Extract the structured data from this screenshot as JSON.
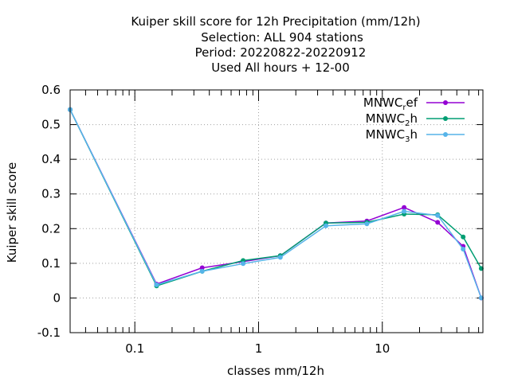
{
  "chart_data": {
    "type": "line",
    "title_lines": [
      "Kuiper skill score  for 12h Precipitation (mm/12h)",
      "Selection: ALL    904 stations",
      "Period: 20220822-20220912",
      "Used  All hours  + 12-00"
    ],
    "xlabel": "classes mm/12h",
    "ylabel": "Kuiper skill score",
    "x_scale": "log",
    "xlim": [
      0.03,
      65
    ],
    "ylim": [
      -0.1,
      0.6
    ],
    "x_ticks": [
      {
        "value": 0.1,
        "label": "0.1"
      },
      {
        "value": 1,
        "label": "1"
      },
      {
        "value": 10,
        "label": "10"
      }
    ],
    "y_ticks": [
      {
        "value": -0.1,
        "label": "-0.1"
      },
      {
        "value": 0,
        "label": "0"
      },
      {
        "value": 0.1,
        "label": "0.1"
      },
      {
        "value": 0.2,
        "label": "0.2"
      },
      {
        "value": 0.3,
        "label": "0.3"
      },
      {
        "value": 0.4,
        "label": "0.4"
      },
      {
        "value": 0.5,
        "label": "0.5"
      },
      {
        "value": 0.6,
        "label": "0.6"
      }
    ],
    "grid": true,
    "legend_position": "top-right",
    "x": [
      0.03,
      0.15,
      0.35,
      0.75,
      1.5,
      3.5,
      7.5,
      15,
      28,
      45,
      63
    ],
    "series": [
      {
        "name_main": "MNWC",
        "name_sub": "r",
        "name_rest": "ef",
        "color": "#9400d3",
        "values": [
          0.543,
          0.04,
          0.087,
          0.105,
          0.122,
          0.216,
          0.222,
          0.261,
          0.218,
          0.149,
          0.0
        ]
      },
      {
        "name_main": "MNWC",
        "name_sub": "2",
        "name_rest": "h",
        "color": "#009e73",
        "values": [
          0.543,
          0.035,
          0.077,
          0.108,
          0.122,
          0.216,
          0.218,
          0.242,
          0.24,
          0.176,
          0.085
        ]
      },
      {
        "name_main": "MNWC",
        "name_sub": "3",
        "name_rest": "h",
        "color": "#56b4e9",
        "values": [
          0.543,
          0.038,
          0.077,
          0.099,
          0.117,
          0.208,
          0.214,
          0.25,
          0.238,
          0.141,
          0.0
        ]
      }
    ]
  }
}
